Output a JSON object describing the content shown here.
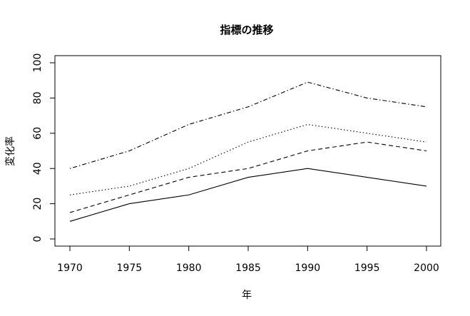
{
  "chart_data": {
    "type": "line",
    "title": "指標の推移",
    "xlabel": "年",
    "ylabel": "変化率",
    "x": [
      1970,
      1975,
      1980,
      1985,
      1990,
      1995,
      2000
    ],
    "xticks": [
      "1970",
      "1975",
      "1980",
      "1985",
      "1990",
      "1995",
      "2000"
    ],
    "yticks": [
      "0",
      "20",
      "40",
      "60",
      "80",
      "100"
    ],
    "ylim": [
      0,
      100
    ],
    "xlim": [
      1970,
      2000
    ],
    "grid": false,
    "series": [
      {
        "line_style": "solid",
        "values": [
          10,
          20,
          25,
          35,
          40,
          35,
          30
        ]
      },
      {
        "line_style": "dashed",
        "values": [
          15,
          25,
          35,
          40,
          50,
          55,
          50
        ]
      },
      {
        "line_style": "dotted",
        "values": [
          25,
          30,
          40,
          55,
          65,
          60,
          55
        ]
      },
      {
        "line_style": "dotdash",
        "values": [
          40,
          50,
          65,
          75,
          89,
          80,
          75
        ]
      }
    ]
  }
}
